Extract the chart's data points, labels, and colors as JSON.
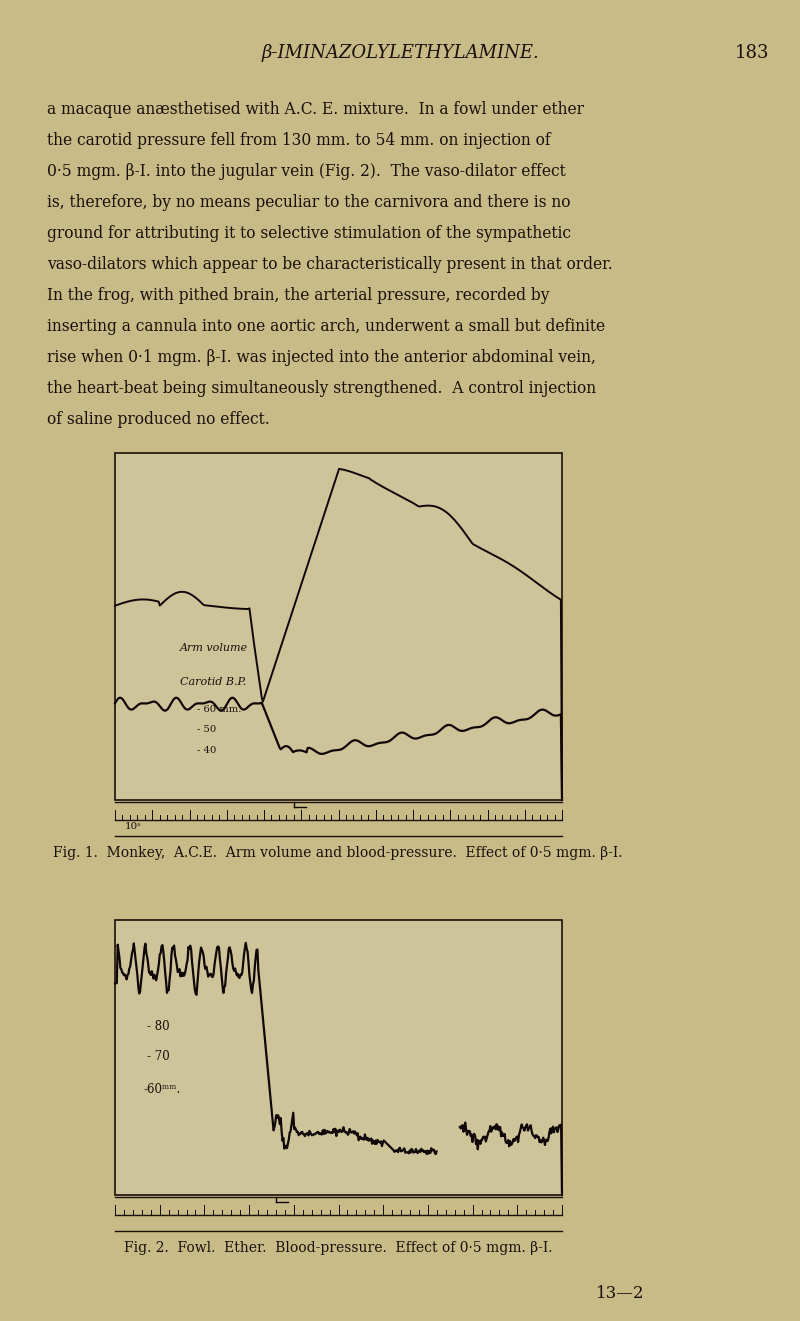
{
  "bg_color": "#c9bb88",
  "fig_inner_bg": "#cec49a",
  "timebar_bg": "#c9bb88",
  "text_color": "#1a100a",
  "title": "β-IMINAZOLYLETHYLAMINE.",
  "page_number": "183",
  "body_text": [
    "a macaque anæsthetised with A.C. E. mixture.  In a fowl under ether",
    "the carotid pressure fell from 130 mm. to 54 mm. on injection of",
    "0·5 mgm. β-I. into the jugular vein (Fig. 2).  The vaso-dilator effect",
    "is, therefore, by no means peculiar to the carnivora and there is no",
    "ground for attributing it to selective stimulation of the sympathetic",
    "vaso-dilators which appear to be characteristically present in that order.",
    "In the frog, with pithed brain, the arterial pressure, recorded by",
    "inserting a cannula into one aortic arch, underwent a small but definite",
    "rise when 0·1 mgm. β-I. was injected into the anterior abdominal vein,",
    "the heart-beat being simultaneously strengthened.  A control injection",
    "of saline produced no effect."
  ],
  "fig1_caption": "Fig. 1.  Monkey,  A.C.E.  Arm volume and blood-pressure.  Effect of 0·5 mgm. β-I.",
  "fig2_caption": "Fig. 2.  Fowl.  Ether.  Blood-pressure.  Effect of 0·5 mgm. β-I.",
  "footer": "13—2",
  "line_color": "#100808",
  "border_color": "#1a100a"
}
